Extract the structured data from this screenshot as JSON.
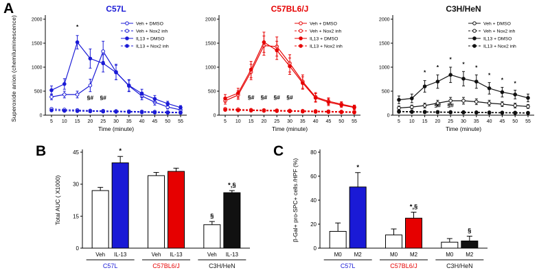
{
  "panels": {
    "a_label": "A",
    "b_label": "B",
    "c_label": "C"
  },
  "colors": {
    "blue": "#1a1ad6",
    "red": "#e60000",
    "black": "#111111"
  },
  "chart_data": [
    {
      "id": "line-c57l",
      "type": "line",
      "title": "C57L",
      "title_color": "#1a1ad6",
      "xlabel": "Time (minute)",
      "ylabel": "Superoxide anion (chemiluminescence)",
      "x": [
        5,
        10,
        15,
        20,
        25,
        30,
        35,
        40,
        45,
        50,
        55
      ],
      "ylim": [
        0,
        2000
      ],
      "yticks": [
        0,
        500,
        1000,
        1500,
        2000
      ],
      "series": [
        {
          "name": "Veh + DMSO",
          "color": "#1a1ad6",
          "marker": "open",
          "dash": false,
          "values": [
            380,
            430,
            430,
            620,
            1330,
            900,
            610,
            400,
            270,
            170,
            110
          ],
          "errors": [
            60,
            70,
            70,
            130,
            210,
            160,
            120,
            80,
            60,
            40,
            30
          ]
        },
        {
          "name": "Veh + Nox2 inh",
          "color": "#1a1ad6",
          "marker": "open",
          "dash": true,
          "values": [
            130,
            115,
            105,
            95,
            90,
            85,
            80,
            75,
            70,
            65,
            60
          ]
        },
        {
          "name": "IL13 + DMSO",
          "color": "#1a1ad6",
          "marker": "filled",
          "dash": false,
          "values": [
            520,
            650,
            1520,
            1180,
            1080,
            890,
            620,
            450,
            340,
            240,
            160
          ],
          "errors": [
            90,
            110,
            140,
            200,
            180,
            150,
            120,
            90,
            70,
            50,
            40
          ]
        },
        {
          "name": "IL13 + Nox2 inh",
          "color": "#1a1ad6",
          "marker": "filled",
          "dash": true,
          "values": [
            100,
            90,
            85,
            80,
            75,
            70,
            65,
            60,
            55,
            50,
            50
          ]
        }
      ],
      "annotations": [
        {
          "x": 15,
          "y": 1800,
          "text": "*"
        },
        {
          "x": 20,
          "y": 320,
          "text": "§#"
        },
        {
          "x": 25,
          "y": 320,
          "text": "§#"
        }
      ]
    },
    {
      "id": "line-c57bl6j",
      "type": "line",
      "title": "C57BL6/J",
      "title_color": "#e60000",
      "xlabel": "Time (minute)",
      "x": [
        5,
        10,
        15,
        20,
        25,
        30,
        35,
        40,
        45,
        50,
        55
      ],
      "ylim": [
        0,
        2000
      ],
      "yticks": [
        0,
        500,
        1000,
        1500,
        2000
      ],
      "series": [
        {
          "name": "Veh + DMSO",
          "color": "#e60000",
          "marker": "open",
          "dash": false,
          "values": [
            300,
            420,
            900,
            1450,
            1430,
            1080,
            700,
            380,
            290,
            230,
            170
          ],
          "errors": [
            70,
            90,
            160,
            200,
            200,
            180,
            140,
            90,
            70,
            50,
            40
          ]
        },
        {
          "name": "Veh + Nox2 inh",
          "color": "#e60000",
          "marker": "open",
          "dash": true,
          "values": [
            130,
            120,
            110,
            105,
            100,
            95,
            90,
            85,
            80,
            75,
            70
          ]
        },
        {
          "name": "IL13 + DMSO",
          "color": "#e60000",
          "marker": "filled",
          "dash": false,
          "values": [
            350,
            460,
            950,
            1520,
            1350,
            1020,
            670,
            360,
            270,
            210,
            160
          ],
          "errors": [
            80,
            100,
            170,
            210,
            190,
            170,
            130,
            90,
            70,
            50,
            40
          ]
        },
        {
          "name": "IL13 + Nox2 inh",
          "color": "#e60000",
          "marker": "filled",
          "dash": true,
          "values": [
            110,
            100,
            95,
            90,
            85,
            80,
            75,
            70,
            65,
            60,
            55
          ]
        }
      ],
      "annotations": [
        {
          "x": 15,
          "y": 330,
          "text": "§#"
        },
        {
          "x": 20,
          "y": 330,
          "text": "§#"
        },
        {
          "x": 25,
          "y": 330,
          "text": "§#"
        },
        {
          "x": 30,
          "y": 330,
          "text": "§#"
        }
      ]
    },
    {
      "id": "line-c3h-hen",
      "type": "line",
      "title": "C3H/HeN",
      "title_color": "#111111",
      "xlabel": "Time (minute)",
      "x": [
        5,
        10,
        15,
        20,
        25,
        30,
        35,
        40,
        45,
        50,
        55
      ],
      "ylim": [
        0,
        2000
      ],
      "yticks": [
        0,
        500,
        1000,
        1500,
        2000
      ],
      "series": [
        {
          "name": "Veh + DMSO",
          "color": "#111111",
          "marker": "open",
          "dash": false,
          "values": [
            150,
            170,
            200,
            250,
            300,
            300,
            280,
            250,
            230,
            200,
            180
          ],
          "errors": [
            40,
            40,
            50,
            60,
            70,
            70,
            60,
            60,
            50,
            50,
            40
          ]
        },
        {
          "name": "Veh + Nox2 inh",
          "color": "#111111",
          "marker": "open",
          "dash": true,
          "values": [
            80,
            75,
            70,
            68,
            65,
            63,
            60,
            58,
            55,
            53,
            50
          ]
        },
        {
          "name": "IL13 + DMSO",
          "color": "#111111",
          "marker": "filled",
          "dash": false,
          "values": [
            320,
            350,
            600,
            700,
            840,
            760,
            700,
            560,
            480,
            430,
            360
          ],
          "errors": [
            80,
            90,
            120,
            140,
            160,
            150,
            140,
            120,
            100,
            90,
            80
          ]
        },
        {
          "name": "IL13 + Nox2 inh",
          "color": "#111111",
          "marker": "filled",
          "dash": true,
          "values": [
            70,
            65,
            62,
            60,
            57,
            55,
            52,
            50,
            48,
            45,
            42
          ]
        }
      ],
      "annotations": [
        {
          "x": 15,
          "y": 850,
          "text": "*"
        },
        {
          "x": 20,
          "y": 960,
          "text": "*"
        },
        {
          "x": 25,
          "y": 1120,
          "text": "*"
        },
        {
          "x": 30,
          "y": 1020,
          "text": "*"
        },
        {
          "x": 35,
          "y": 950,
          "text": "*"
        },
        {
          "x": 40,
          "y": 790,
          "text": "*"
        },
        {
          "x": 45,
          "y": 690,
          "text": "*"
        },
        {
          "x": 50,
          "y": 620,
          "text": "*"
        },
        {
          "x": 20,
          "y": 165,
          "text": "§#"
        },
        {
          "x": 25,
          "y": 165,
          "text": "§#"
        }
      ]
    },
    {
      "id": "bar-total-auc",
      "type": "bar",
      "panel": "B",
      "ylabel": "Total AUC ( X1000)",
      "ylim": [
        0,
        45
      ],
      "yticks": [
        0,
        15,
        30,
        45
      ],
      "categories": [
        "Veh",
        "IL-13",
        "Veh",
        "IL-13",
        "Veh",
        "IL-13"
      ],
      "values": [
        27,
        40,
        34,
        36,
        11,
        26
      ],
      "errors": [
        1.5,
        3,
        1.5,
        1.5,
        1.5,
        1
      ],
      "bar_fills": [
        "#ffffff",
        "#1a1ad6",
        "#ffffff",
        "#e60000",
        "#ffffff",
        "#111111"
      ],
      "annotations": [
        "",
        "*",
        "",
        "",
        "§",
        "*,§"
      ],
      "groups": [
        {
          "label": "C57L",
          "color": "#1a1ad6"
        },
        {
          "label": "C57BL6/J",
          "color": "#e60000"
        },
        {
          "label": "C3H/HeN",
          "color": "#111111"
        }
      ]
    },
    {
      "id": "bar-spc-cells",
      "type": "bar",
      "panel": "C",
      "ylabel": "β-Gal+ pro-SPC+ cells /HPF (%)",
      "ylim": [
        0,
        80
      ],
      "yticks": [
        0,
        20,
        40,
        60,
        80
      ],
      "categories": [
        "M0",
        "M2",
        "M0",
        "M2",
        "M0",
        "M2"
      ],
      "values": [
        14,
        51,
        11,
        25,
        5,
        6
      ],
      "errors": [
        7,
        12,
        5,
        5,
        3,
        4
      ],
      "bar_fills": [
        "#ffffff",
        "#1a1ad6",
        "#ffffff",
        "#e60000",
        "#ffffff",
        "#111111"
      ],
      "annotations": [
        "",
        "*",
        "",
        "*,§",
        "",
        "§"
      ],
      "groups": [
        {
          "label": "C57L",
          "color": "#1a1ad6"
        },
        {
          "label": "C57BL6/J",
          "color": "#e60000"
        },
        {
          "label": "C3H/HeN",
          "color": "#111111"
        }
      ]
    }
  ]
}
